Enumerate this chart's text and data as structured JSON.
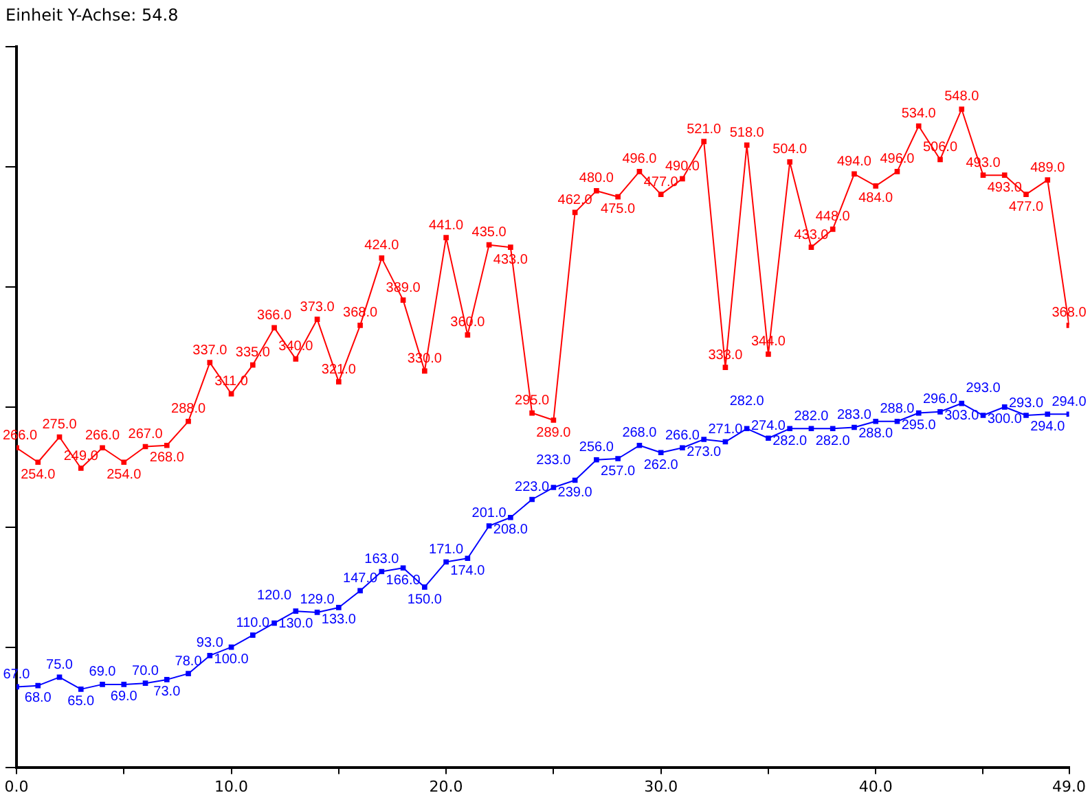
{
  "chart_data": {
    "type": "line",
    "annotations": [
      "Einheit Y-Achse: 54.8"
    ],
    "x": [
      0,
      1,
      2,
      3,
      4,
      5,
      6,
      7,
      8,
      9,
      10,
      11,
      12,
      13,
      14,
      15,
      16,
      17,
      18,
      19,
      20,
      21,
      22,
      23,
      24,
      25,
      26,
      27,
      28,
      29,
      30,
      31,
      32,
      33,
      34,
      35,
      36,
      37,
      38,
      39,
      40,
      41,
      42,
      43,
      44,
      45,
      46,
      47,
      48,
      49
    ],
    "series": [
      {
        "color": "#ff0000",
        "values": [
          266,
          254,
          275,
          249,
          266,
          254,
          267,
          268,
          288,
          337,
          311,
          335,
          366,
          340,
          373,
          321,
          368,
          424,
          389,
          330,
          441,
          360,
          435,
          433,
          295,
          289,
          462,
          480,
          475,
          496,
          477,
          490,
          521,
          333,
          518,
          344,
          504,
          433,
          448,
          494,
          484,
          496,
          534,
          506,
          548,
          493,
          493,
          477,
          489,
          368
        ],
        "value_labels": [
          "266.0",
          "254.0",
          "275.0",
          "249.0",
          "266.0",
          "254.0",
          "267.0",
          "268.0",
          "288.0",
          "337.0",
          "311.0",
          "335.0",
          "366.0",
          "340.0",
          "373.0",
          "321.0",
          "368.0",
          "424.0",
          "389.0",
          "330.0",
          "441.0",
          "360.0",
          "435.0",
          "433.0",
          "295.0",
          "289.0",
          "462.0",
          "480.0",
          "475.0",
          "496.0",
          "477.0",
          "490.0",
          "521.0",
          "333.0",
          "518.0",
          "344.0",
          "504.0",
          "433.0",
          "448.0",
          "494.0",
          "484.0",
          "496.0",
          "534.0",
          "506.0",
          "548.0",
          "493.0",
          "493.0",
          "477.0",
          "489.0",
          "368.0"
        ]
      },
      {
        "color": "#0000ff",
        "values": [
          67,
          68,
          75,
          65,
          69,
          69,
          70,
          73,
          78,
          93,
          100,
          110,
          120,
          130,
          129,
          133,
          147,
          163,
          166,
          150,
          171,
          174,
          201,
          208,
          223,
          233,
          239,
          256,
          257,
          268,
          262,
          266,
          273,
          271,
          282,
          274,
          282,
          282,
          282,
          283,
          288,
          288,
          295,
          296,
          303,
          293,
          300,
          293,
          294,
          294
        ],
        "value_labels": [
          "67.0",
          "68.0",
          "75.0",
          "65.0",
          "69.0",
          "69.0",
          "70.0",
          "73.0",
          "78.0",
          "93.0",
          "100.0",
          "110.0",
          "120.0",
          "130.0",
          "129.0",
          "133.0",
          "147.0",
          "163.0",
          "166.0",
          "150.0",
          "171.0",
          "174.0",
          "201.0",
          "208.0",
          "223.0",
          "233.0",
          "239.0",
          "256.0",
          "257.0",
          "268.0",
          "262.0",
          "266.0",
          "273.0",
          "271.0",
          "282.0",
          "274.0",
          "282.0",
          "282.0",
          "282.0",
          "283.0",
          "288.0",
          "288.0",
          "295.0",
          "296.0",
          "303.0",
          "293.0",
          "300.0",
          "293.0",
          "294.0",
          "294.0"
        ]
      }
    ],
    "xlim": [
      0,
      49
    ],
    "xticks": [
      {
        "value": 0,
        "label": "0.0"
      },
      {
        "value": 5,
        "label": null
      },
      {
        "value": 10,
        "label": "10.0"
      },
      {
        "value": 15,
        "label": null
      },
      {
        "value": 20,
        "label": "20.0"
      },
      {
        "value": 25,
        "label": null
      },
      {
        "value": 30,
        "label": "30.0"
      },
      {
        "value": 35,
        "label": null
      },
      {
        "value": 40,
        "label": "40.0"
      },
      {
        "value": 45,
        "label": null
      },
      {
        "value": 49,
        "label": "49.0"
      }
    ],
    "tick_labels": "x",
    "grid": false,
    "legend": false,
    "marker": "square",
    "line_style": "solid"
  }
}
